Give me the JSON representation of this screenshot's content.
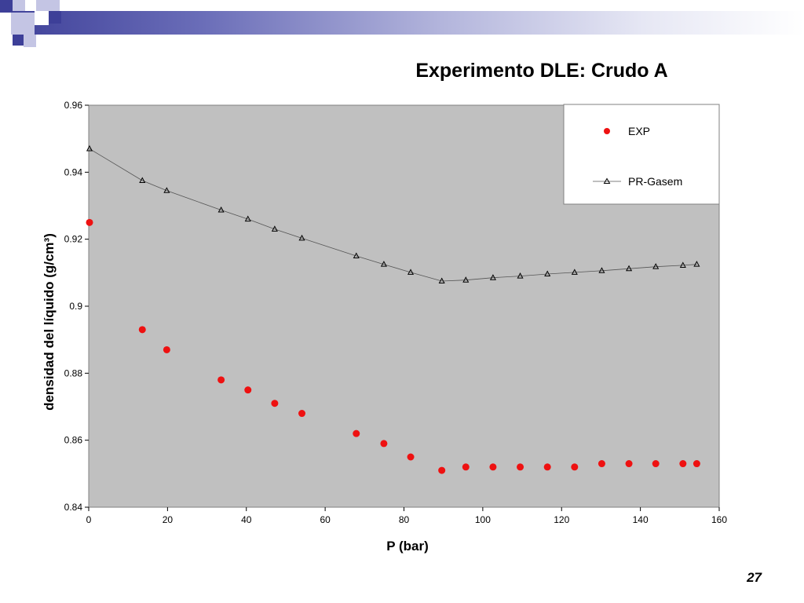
{
  "slide": {
    "page_number": "27",
    "colors": {
      "header_dark": "#3d3f98",
      "header_mid": "#8a8cc8",
      "header_light": "#c4c5e4"
    }
  },
  "chart_data": {
    "type": "scatter",
    "title": "Experimento DLE: Crudo A",
    "xlabel": "P (bar)",
    "ylabel": "densidad del líquido (g/cm³)",
    "xlim": [
      0,
      160
    ],
    "ylim": [
      0.84,
      0.96
    ],
    "xticks": [
      0,
      20,
      40,
      60,
      80,
      100,
      120,
      140,
      160
    ],
    "xtick_labels": [
      "0",
      "20",
      "40",
      "60",
      "80",
      "100",
      "120",
      "140",
      "160"
    ],
    "yticks": [
      0.84,
      0.86,
      0.88,
      0.9,
      0.92,
      0.94,
      0.96
    ],
    "ytick_labels": [
      "0.84",
      "0.86",
      "0.88",
      "0.9",
      "0.92",
      "0.94",
      "0.96"
    ],
    "plot_background": "#c0c0c0",
    "grid": false,
    "legend_position": "top-right",
    "series": [
      {
        "name": "EXP",
        "marker": "circle",
        "color": "#ee1111",
        "x": [
          0.2,
          13.6,
          19.8,
          33.6,
          40.4,
          47.2,
          54.1,
          67.9,
          74.9,
          81.7,
          89.6,
          95.7,
          102.6,
          109.5,
          116.4,
          123.3,
          130.2,
          137.1,
          143.9,
          150.8,
          154.3
        ],
        "y": [
          0.925,
          0.893,
          0.887,
          0.878,
          0.875,
          0.871,
          0.868,
          0.862,
          0.859,
          0.855,
          0.851,
          0.852,
          0.852,
          0.852,
          0.852,
          0.852,
          0.853,
          0.853,
          0.853,
          0.853,
          0.853
        ]
      },
      {
        "name": "PR-Gasem",
        "marker": "triangle",
        "color": "#000000",
        "line_color": "#555555",
        "x": [
          0.2,
          13.6,
          19.8,
          33.6,
          40.4,
          47.2,
          54.1,
          67.9,
          74.9,
          81.7,
          89.6,
          95.7,
          102.6,
          109.5,
          116.4,
          123.3,
          130.2,
          137.1,
          143.9,
          150.8,
          154.3
        ],
        "y": [
          0.947,
          0.9375,
          0.9345,
          0.9287,
          0.926,
          0.923,
          0.9203,
          0.915,
          0.9125,
          0.9101,
          0.9075,
          0.9078,
          0.9085,
          0.909,
          0.9096,
          0.9101,
          0.9106,
          0.9112,
          0.9118,
          0.9122,
          0.9125
        ]
      }
    ]
  }
}
